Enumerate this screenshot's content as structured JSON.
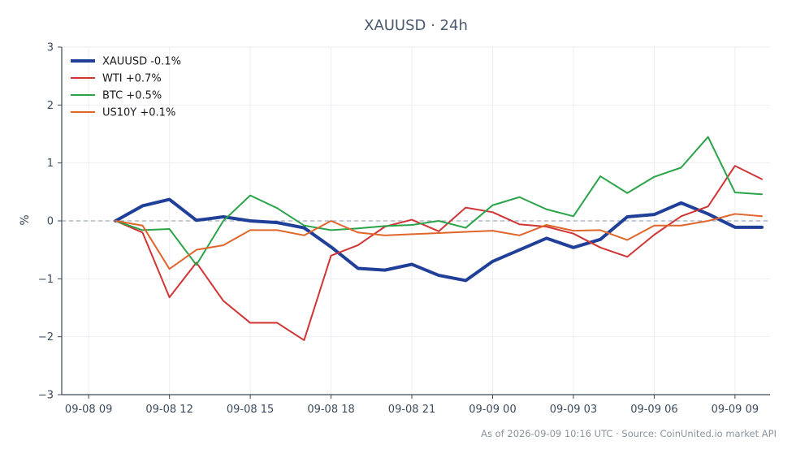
{
  "chart_data": {
    "type": "line",
    "title": "XAUUSD · 24h",
    "xlabel": "",
    "ylabel": "%",
    "ylim": [
      -3,
      3
    ],
    "yticks": [
      3,
      2,
      1,
      0,
      -1,
      -2,
      -3
    ],
    "ytick_labels": [
      "3",
      "2",
      "1",
      "0",
      "−1",
      "−2",
      "−3"
    ],
    "x_hours_range": [
      -1,
      25.3
    ],
    "xticks": [
      {
        "h": 0,
        "label": "09-08 09"
      },
      {
        "h": 3,
        "label": "09-08 12"
      },
      {
        "h": 6,
        "label": "09-08 15"
      },
      {
        "h": 9,
        "label": "09-08 18"
      },
      {
        "h": 12,
        "label": "09-08 21"
      },
      {
        "h": 15,
        "label": "09-09 00"
      },
      {
        "h": 18,
        "label": "09-09 03"
      },
      {
        "h": 21,
        "label": "09-09 06"
      },
      {
        "h": 24,
        "label": "09-09 09"
      }
    ],
    "grid": true,
    "zero_line": true,
    "legend_position": "top-left",
    "x_hours": [
      1,
      2,
      3,
      4,
      5,
      6,
      7,
      8,
      9,
      10,
      11,
      12,
      13,
      14,
      15,
      16,
      17,
      18,
      19,
      20,
      21,
      22,
      23,
      24,
      25
    ],
    "series": [
      {
        "name": "XAUUSD -0.1%",
        "color": "#1f3f99",
        "width": 4,
        "values": [
          0.0,
          0.26,
          0.37,
          0.01,
          0.07,
          0.0,
          -0.03,
          -0.12,
          -0.45,
          -0.82,
          -0.85,
          -0.75,
          -0.94,
          -1.03,
          -0.7,
          -0.5,
          -0.3,
          -0.46,
          -0.32,
          0.07,
          0.11,
          0.31,
          0.12,
          -0.11,
          -0.11
        ]
      },
      {
        "name": "WTI +0.7%",
        "color": "#d03535",
        "width": 2,
        "values": [
          0.0,
          -0.2,
          -1.32,
          -0.72,
          -1.38,
          -1.76,
          -1.76,
          -2.06,
          -0.6,
          -0.42,
          -0.1,
          0.02,
          -0.18,
          0.23,
          0.15,
          -0.06,
          -0.1,
          -0.22,
          -0.46,
          -0.62,
          -0.24,
          0.08,
          0.25,
          0.95,
          0.72
        ]
      },
      {
        "name": "BTC +0.5%",
        "color": "#2aa34a",
        "width": 2,
        "values": [
          0.0,
          -0.16,
          -0.14,
          -0.76,
          0.0,
          0.44,
          0.22,
          -0.08,
          -0.16,
          -0.13,
          -0.09,
          -0.07,
          0.0,
          -0.12,
          0.27,
          0.41,
          0.2,
          0.08,
          0.77,
          0.48,
          0.76,
          0.92,
          1.45,
          0.49,
          0.46
        ]
      },
      {
        "name": "US10Y +0.1%",
        "color": "#e0652a",
        "width": 2,
        "values": [
          0.0,
          -0.08,
          -0.83,
          -0.5,
          -0.42,
          -0.16,
          -0.16,
          -0.25,
          0.0,
          -0.2,
          -0.25,
          -0.23,
          -0.21,
          -0.19,
          -0.17,
          -0.25,
          -0.07,
          -0.17,
          -0.16,
          -0.33,
          -0.08,
          -0.08,
          0.0,
          0.12,
          0.08
        ]
      }
    ],
    "footer": "As of 2026-09-09 10:16 UTC · Source: CoinUnited.io market API"
  }
}
